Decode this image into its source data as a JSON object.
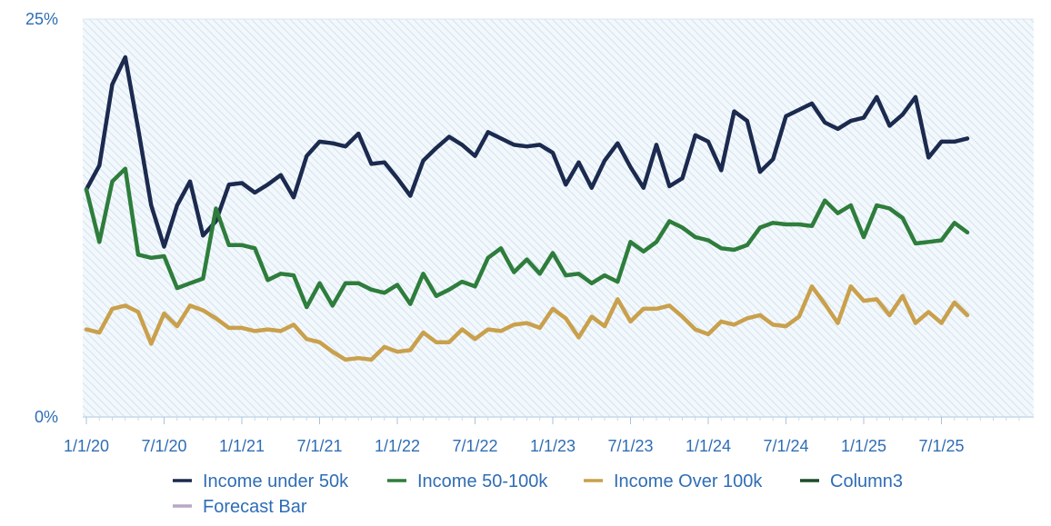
{
  "chart_data": {
    "type": "line",
    "y_tick_labels": [
      "0%",
      "25%"
    ],
    "ylim": [
      0,
      25
    ],
    "x_tick_labels": [
      "1/1/20",
      "7/1/20",
      "1/1/21",
      "7/1/21",
      "1/1/22",
      "7/1/22",
      "1/1/23",
      "7/1/23",
      "1/1/24",
      "7/1/24",
      "1/1/25",
      "7/1/25"
    ],
    "x_start": "2020-01",
    "x_months_total": 72,
    "plot_area_pattern": "diagonal-hatch",
    "legend_position": "bottom",
    "series": [
      {
        "name": "Income under 50k",
        "color": "#1b2a4e",
        "values": [
          14.3,
          15.8,
          20.9,
          22.6,
          18.1,
          13.3,
          10.7,
          13.3,
          14.8,
          11.4,
          12.3,
          14.6,
          14.7,
          14.1,
          14.6,
          15.2,
          13.8,
          16.4,
          17.3,
          17.2,
          17.0,
          17.8,
          15.9,
          16.0,
          15.0,
          13.9,
          16.1,
          16.9,
          17.6,
          17.1,
          16.4,
          17.9,
          17.5,
          17.1,
          17.0,
          17.1,
          16.6,
          14.6,
          16.0,
          14.4,
          16.1,
          17.2,
          15.7,
          14.4,
          17.1,
          14.5,
          15.0,
          17.7,
          17.3,
          15.5,
          19.2,
          18.6,
          15.4,
          16.2,
          18.9,
          19.3,
          19.7,
          18.5,
          18.1,
          18.6,
          18.8,
          20.1,
          18.3,
          19.0,
          20.1,
          16.3,
          17.3,
          17.3,
          17.5
        ]
      },
      {
        "name": "Income 50-100k",
        "color": "#2e7d3c",
        "values": [
          14.3,
          11.0,
          14.8,
          15.6,
          10.2,
          10.0,
          10.1,
          8.1,
          8.4,
          8.7,
          13.1,
          10.8,
          10.8,
          10.6,
          8.6,
          9.0,
          8.9,
          6.9,
          8.4,
          7.0,
          8.4,
          8.4,
          8.0,
          7.8,
          8.3,
          7.1,
          9.0,
          7.6,
          8.0,
          8.5,
          8.2,
          10.0,
          10.6,
          9.1,
          9.9,
          9.0,
          10.3,
          8.9,
          9.0,
          8.4,
          8.9,
          8.5,
          11.0,
          10.4,
          11.0,
          12.3,
          11.9,
          11.3,
          11.1,
          10.6,
          10.5,
          10.8,
          11.9,
          12.2,
          12.1,
          12.1,
          12.0,
          13.6,
          12.8,
          13.3,
          11.3,
          13.3,
          13.1,
          12.5,
          10.9,
          11.0,
          11.1,
          12.2,
          11.6
        ]
      },
      {
        "name": "Income Over 100k",
        "color": "#c9a04c",
        "values": [
          5.5,
          5.3,
          6.8,
          7.0,
          6.6,
          4.6,
          6.5,
          5.7,
          7.0,
          6.7,
          6.2,
          5.6,
          5.6,
          5.4,
          5.5,
          5.4,
          5.8,
          4.9,
          4.7,
          4.1,
          3.6,
          3.7,
          3.6,
          4.4,
          4.1,
          4.2,
          5.3,
          4.7,
          4.7,
          5.5,
          4.9,
          5.5,
          5.4,
          5.8,
          5.9,
          5.6,
          6.8,
          6.2,
          5.0,
          6.3,
          5.7,
          7.4,
          6.0,
          6.8,
          6.8,
          7.0,
          6.3,
          5.5,
          5.2,
          6.0,
          5.8,
          6.2,
          6.4,
          5.8,
          5.7,
          6.3,
          8.2,
          7.1,
          5.9,
          8.2,
          7.3,
          7.4,
          6.4,
          7.6,
          5.9,
          6.6,
          5.9,
          7.2,
          6.4
        ]
      },
      {
        "name": "Column3",
        "color": "#1c4d2a",
        "values": []
      },
      {
        "name": "Forecast Bar",
        "color": "#b5a9c4",
        "values": []
      }
    ]
  }
}
